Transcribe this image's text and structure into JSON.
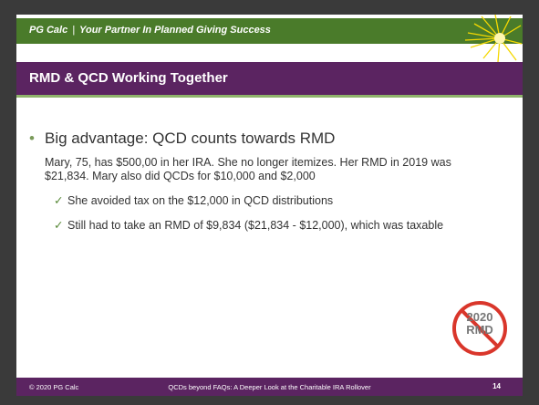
{
  "header": {
    "company": "PG Calc",
    "slogan": "Your Partner In Planned Giving Success"
  },
  "title": "RMD & QCD Working Together",
  "bullet": "Big advantage: QCD counts towards RMD",
  "paragraph": "Mary, 75, has $500,00 in her IRA. She no longer itemizes. Her RMD in 2019 was $21,834. Mary also did QCDs for $10,000 and $2,000",
  "checks": [
    "She avoided tax on the $12,000 in QCD distributions",
    "Still had to take an RMD of $9,834 ($21,834 - $12,000), which was taxable"
  ],
  "icon": [
    "2020",
    "RMD"
  ],
  "footer": {
    "left": "© 2020 PG Calc",
    "center": "QCDs beyond FAQs: A Deeper Look at the Charitable IRA Rollover",
    "page": "14"
  }
}
